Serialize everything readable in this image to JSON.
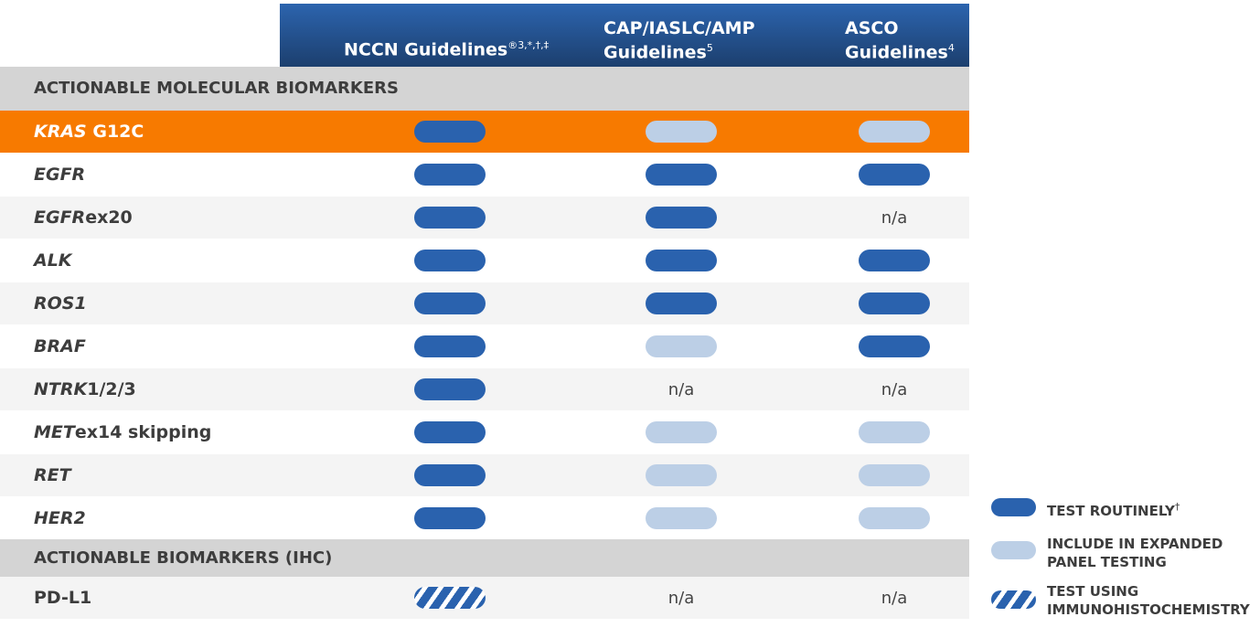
{
  "header": {
    "col1": "NCCN Guidelines",
    "col1_sup": "®3,*,†,‡",
    "col2_l1": "CAP/IASLC/AMP",
    "col2_l2": "Guidelines",
    "col2_sup": "5",
    "col3_l1": "ASCO",
    "col3_l2": "Guidelines",
    "col3_sup": "4"
  },
  "sections": [
    {
      "label": "ACTIONABLE MOLECULAR BIOMARKERS"
    },
    {
      "label": "ACTIONABLE BIOMARKERS (IHC)"
    }
  ],
  "colors": {
    "test_routinely": "#2a62ae",
    "expanded_panel": "#bccfe6",
    "highlight": "#f77a00",
    "section_bg": "#d4d4d4",
    "header": "#2c64ae"
  },
  "rows": [
    {
      "gene": "KRAS",
      "suffix": " G12C",
      "cells": [
        "routine",
        "expanded",
        "expanded"
      ],
      "highlight": true
    },
    {
      "gene": "EGFR",
      "suffix": "",
      "cells": [
        "routine",
        "routine",
        "routine"
      ]
    },
    {
      "gene": "EGFR",
      "suffix": "ex20",
      "cells": [
        "routine",
        "routine",
        "n/a"
      ]
    },
    {
      "gene": "ALK",
      "suffix": "",
      "cells": [
        "routine",
        "routine",
        "routine"
      ]
    },
    {
      "gene": "ROS1",
      "suffix": "",
      "cells": [
        "routine",
        "routine",
        "routine"
      ]
    },
    {
      "gene": "BRAF",
      "suffix": "",
      "cells": [
        "routine",
        "expanded",
        "routine"
      ]
    },
    {
      "gene": "NTRK",
      "suffix": "1/2/3",
      "cells": [
        "routine",
        "n/a",
        "n/a"
      ]
    },
    {
      "gene": "MET",
      "suffix": "ex14 skipping",
      "cells": [
        "routine",
        "expanded",
        "expanded"
      ]
    },
    {
      "gene": "RET",
      "suffix": "",
      "cells": [
        "routine",
        "expanded",
        "expanded"
      ]
    },
    {
      "gene": "HER2",
      "suffix": "",
      "cells": [
        "routine",
        "expanded",
        "expanded"
      ]
    }
  ],
  "ihc_rows": [
    {
      "gene": "",
      "suffix": "PD-L1",
      "cells": [
        "ihc",
        "n/a",
        "n/a"
      ]
    }
  ],
  "legend": {
    "routine": "TEST ROUTINELY",
    "routine_sup": "†",
    "expanded_l1": "INCLUDE IN EXPANDED",
    "expanded_l2": "PANEL TESTING",
    "ihc_l1": "TEST USING",
    "ihc_l2": "IMMUNOHISTOCHEMISTRY"
  }
}
